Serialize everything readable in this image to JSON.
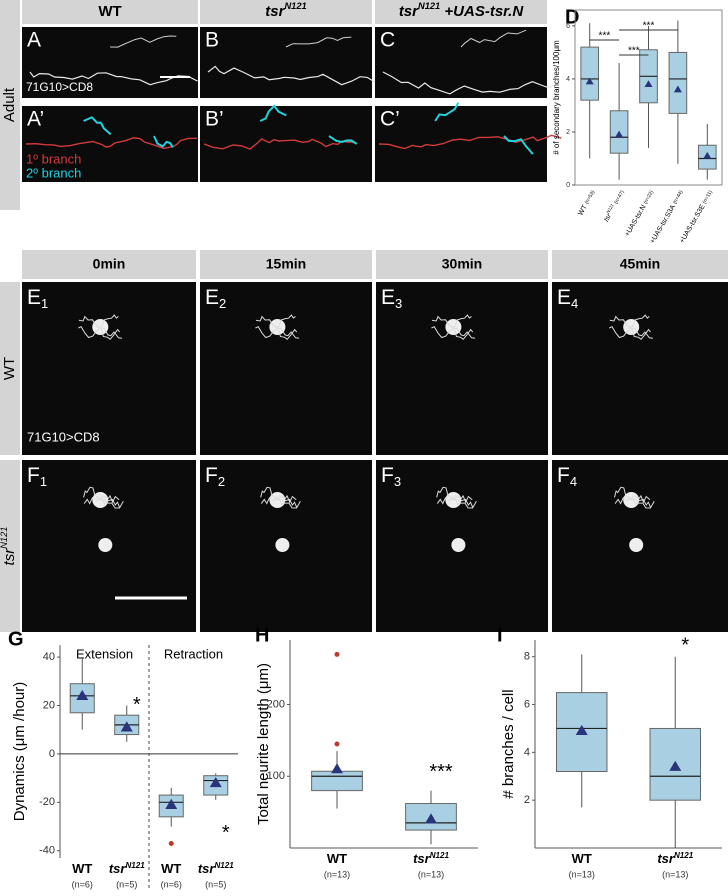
{
  "figure": {
    "adult": {
      "side": "Adult",
      "columns": [
        {
          "name": "WT"
        },
        {
          "name": "tsr",
          "sup": "N121"
        },
        {
          "name": "tsr",
          "sup": "N121",
          "extra": " +UAS-tsr.N"
        }
      ],
      "panels": [
        [
          "A",
          "B",
          "C"
        ],
        [
          "A’",
          "B’",
          "C’"
        ]
      ],
      "driver": "71G10>CD8",
      "legend": [
        "1º branch",
        "2º branch"
      ]
    },
    "live": {
      "times": [
        "0min",
        "15min",
        "30min",
        "45min"
      ],
      "rows": [
        {
          "name": "WT",
          "letter": "E"
        },
        {
          "name": "tsr",
          "sup": "N121",
          "letter": "F"
        }
      ],
      "subscripts": [
        "1",
        "2",
        "3",
        "4"
      ],
      "driver": "71G10>CD8"
    }
  },
  "chart_data": [
    {
      "type": "box",
      "panel": "D",
      "ylabel": "# of secondary branches/100μm",
      "categories": [
        {
          "name": "WT",
          "n": "(n=53)"
        },
        {
          "name": "tsr",
          "sup": "N121",
          "n": "(n=47)"
        },
        {
          "name": "+UAS-tsr.N",
          "n": "(n=22)"
        },
        {
          "name": "+UAS-tsr.S3A",
          "n": "(n=44)"
        },
        {
          "name": "+UAS-tsr.S3E",
          "n": "(n=11)"
        }
      ],
      "boxes": [
        {
          "whislo": 1.0,
          "q1": 3.2,
          "med": 4.0,
          "q3": 5.2,
          "whishi": 6.1,
          "mean": 3.9
        },
        {
          "whislo": 0.2,
          "q1": 1.2,
          "med": 1.8,
          "q3": 2.8,
          "whishi": 4.6,
          "mean": 1.9
        },
        {
          "whislo": 1.4,
          "q1": 3.1,
          "med": 4.1,
          "q3": 5.1,
          "whishi": 6.0,
          "mean": 3.8
        },
        {
          "whislo": 0.8,
          "q1": 2.7,
          "med": 4.0,
          "q3": 5.0,
          "whishi": 6.2,
          "mean": 3.6
        },
        {
          "whislo": 0.2,
          "q1": 0.6,
          "med": 1.0,
          "q3": 1.5,
          "whishi": 2.3,
          "mean": 1.1
        }
      ],
      "annotations": [
        "***",
        "***",
        "***"
      ],
      "ylim": [
        0,
        6.6
      ],
      "yticks": [
        0,
        2,
        4,
        6
      ],
      "color": "#a9d0e2"
    },
    {
      "type": "box",
      "panel": "G",
      "ylabel": "Dynamics (μm /hour)",
      "groups": [
        "Extension",
        "Retraction"
      ],
      "categories": [
        {
          "name": "WT",
          "n": "(n=6)"
        },
        {
          "name": "tsr",
          "sup": "N121",
          "n": "(n=5)"
        },
        {
          "name": "WT",
          "n": "(n=6)"
        },
        {
          "name": "tsr",
          "sup": "N121",
          "n": "(n=5)"
        }
      ],
      "boxes": [
        {
          "whislo": 10,
          "q1": 17,
          "med": 24,
          "q3": 29,
          "whishi": 40,
          "mean": 24
        },
        {
          "whislo": 5,
          "q1": 8,
          "med": 12,
          "q3": 16,
          "whishi": 20,
          "mean": 11
        },
        {
          "whislo": -30,
          "q1": -26,
          "med": -20,
          "q3": -17,
          "whishi": -14,
          "mean": -21,
          "outliers": [
            -37
          ]
        },
        {
          "whislo": -19,
          "q1": -17,
          "med": -11,
          "q3": -9,
          "whishi": -8,
          "mean": -12
        }
      ],
      "annotations": [
        "*",
        "*"
      ],
      "ylim": [
        -43,
        45
      ],
      "yticks": [
        -40,
        -20,
        0,
        20,
        40
      ],
      "color": "#a9d0e2"
    },
    {
      "type": "box",
      "panel": "H",
      "ylabel": "Total neurite length (μm)",
      "categories": [
        {
          "name": "WT",
          "n": "(n=13)"
        },
        {
          "name": "tsr",
          "sup": "N121",
          "n": "(n=13)"
        }
      ],
      "boxes": [
        {
          "whislo": 55,
          "q1": 80,
          "med": 100,
          "q3": 107,
          "whishi": 135,
          "mean": 110,
          "outliers": [
            145,
            270
          ]
        },
        {
          "whislo": 5,
          "q1": 25,
          "med": 35,
          "q3": 62,
          "whishi": 80,
          "mean": 40
        }
      ],
      "annotations": [
        "***"
      ],
      "ylim": [
        0,
        290
      ],
      "yticks": [
        100,
        200
      ],
      "color": "#a9d0e2"
    },
    {
      "type": "box",
      "panel": "I",
      "ylabel": "# branches / cell",
      "categories": [
        {
          "name": "WT",
          "n": "(n=13)"
        },
        {
          "name": "tsr",
          "sup": "N121",
          "n": "(n=13)"
        }
      ],
      "boxes": [
        {
          "whislo": 1.7,
          "q1": 3.2,
          "med": 5.0,
          "q3": 6.5,
          "whishi": 8.1,
          "mean": 4.9
        },
        {
          "whislo": 0,
          "q1": 2.0,
          "med": 3.0,
          "q3": 5.0,
          "whishi": 8.0,
          "mean": 3.4
        }
      ],
      "annotations": [
        "*"
      ],
      "ylim": [
        0,
        8.7
      ],
      "yticks": [
        2,
        4,
        6,
        8
      ],
      "color": "#a9d0e2"
    }
  ]
}
